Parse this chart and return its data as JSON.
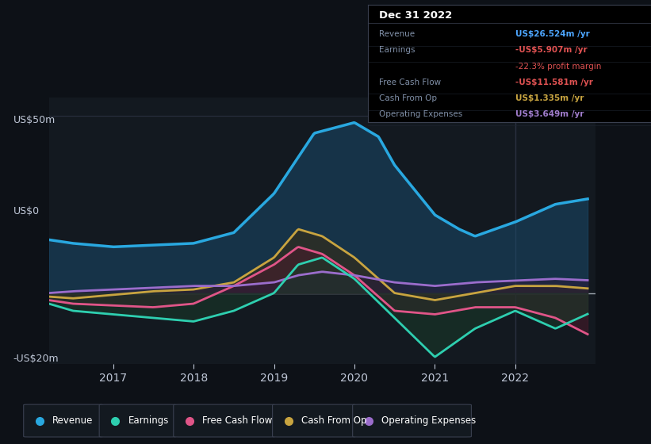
{
  "bg_color": "#0d1117",
  "chart_bg": "#131920",
  "title": "Dec 31 2022",
  "ylabel_top": "US$50m",
  "ylabel_zero": "US$0",
  "ylabel_bottom": "-US$20m",
  "ylim": [
    -20,
    55
  ],
  "xlim": [
    2016.2,
    2023.0
  ],
  "xticks": [
    2017,
    2018,
    2019,
    2020,
    2021,
    2022
  ],
  "series": {
    "Revenue": {
      "x": [
        2016.2,
        2016.5,
        2017.0,
        2017.5,
        2018.0,
        2018.5,
        2019.0,
        2019.5,
        2020.0,
        2020.3,
        2020.5,
        2021.0,
        2021.3,
        2021.5,
        2022.0,
        2022.5,
        2022.9
      ],
      "y": [
        15,
        14,
        13,
        13.5,
        14,
        17,
        28,
        45,
        48,
        44,
        36,
        22,
        18,
        16,
        20,
        25,
        26.5
      ],
      "color": "#29a8e0",
      "fill_color": "#1a4a6a",
      "lw": 2.5
    },
    "Cash From Op": {
      "x": [
        2016.2,
        2016.5,
        2017.0,
        2017.5,
        2018.0,
        2018.5,
        2019.0,
        2019.3,
        2019.6,
        2020.0,
        2020.5,
        2021.0,
        2021.5,
        2022.0,
        2022.5,
        2022.9
      ],
      "y": [
        -1,
        -1.5,
        -0.5,
        0.5,
        1,
        3,
        10,
        18,
        16,
        10,
        0,
        -2,
        0,
        2,
        2,
        1.3
      ],
      "color": "#c8a440",
      "fill_color": "#3a2a10",
      "lw": 2.0
    },
    "Free Cash Flow": {
      "x": [
        2016.2,
        2016.5,
        2017.0,
        2017.5,
        2018.0,
        2018.5,
        2019.0,
        2019.3,
        2019.6,
        2020.0,
        2020.5,
        2021.0,
        2021.5,
        2022.0,
        2022.5,
        2022.9
      ],
      "y": [
        -2,
        -3,
        -3.5,
        -4,
        -3,
        2,
        8,
        13,
        11,
        5,
        -5,
        -6,
        -4,
        -4,
        -7,
        -11.6
      ],
      "color": "#e05588",
      "fill_color": "#4a1a2a",
      "lw": 2.0
    },
    "Operating Expenses": {
      "x": [
        2016.2,
        2016.5,
        2017.0,
        2017.5,
        2018.0,
        2018.5,
        2019.0,
        2019.3,
        2019.6,
        2020.0,
        2020.5,
        2021.0,
        2021.5,
        2022.0,
        2022.5,
        2022.9
      ],
      "y": [
        0,
        0.5,
        1,
        1.5,
        2,
        2,
        3,
        5,
        6,
        5,
        3,
        2,
        3,
        3.5,
        4,
        3.6
      ],
      "color": "#9b6dcc",
      "fill_color": "#2a1a3a",
      "lw": 2.0
    },
    "Earnings": {
      "x": [
        2016.2,
        2016.5,
        2017.0,
        2017.5,
        2018.0,
        2018.5,
        2019.0,
        2019.3,
        2019.6,
        2020.0,
        2020.5,
        2021.0,
        2021.5,
        2022.0,
        2022.5,
        2022.9
      ],
      "y": [
        -3,
        -5,
        -6,
        -7,
        -8,
        -5,
        0,
        8,
        10,
        4,
        -7,
        -18,
        -10,
        -5,
        -10,
        -5.9
      ],
      "color": "#2ecfb0",
      "fill_color": "#1a3a2a",
      "lw": 2.0
    }
  },
  "series_order": [
    "Revenue",
    "Cash From Op",
    "Free Cash Flow",
    "Operating Expenses",
    "Earnings"
  ],
  "table_rows": [
    {
      "label": "Revenue",
      "value": "US$26.524m /yr",
      "vcolor": "#4da6ff",
      "sub": null,
      "scolor": null
    },
    {
      "label": "Earnings",
      "value": "-US$5.907m /yr",
      "vcolor": "#e05252",
      "sub": "-22.3% profit margin",
      "scolor": "#e05252"
    },
    {
      "label": "Free Cash Flow",
      "value": "-US$11.581m /yr",
      "vcolor": "#e05252",
      "sub": null,
      "scolor": null
    },
    {
      "label": "Cash From Op",
      "value": "US$1.335m /yr",
      "vcolor": "#c8a440",
      "sub": null,
      "scolor": null
    },
    {
      "label": "Operating Expenses",
      "value": "US$3.649m /yr",
      "vcolor": "#a07dcc",
      "sub": null,
      "scolor": null
    }
  ],
  "legend": [
    {
      "label": "Revenue",
      "color": "#29a8e0"
    },
    {
      "label": "Earnings",
      "color": "#2ecfb0"
    },
    {
      "label": "Free Cash Flow",
      "color": "#e05588"
    },
    {
      "label": "Cash From Op",
      "color": "#c8a440"
    },
    {
      "label": "Operating Expenses",
      "color": "#9b6dcc"
    }
  ],
  "grid_color": "#2a3040",
  "zero_line_color": "#a0a8b0",
  "divider_x": 2022.0,
  "divider_color": "#2a3040",
  "table_bg": "#000000",
  "table_border": "#3a4050",
  "label_color": "#8090a8",
  "tick_color": "#c0c8d8"
}
